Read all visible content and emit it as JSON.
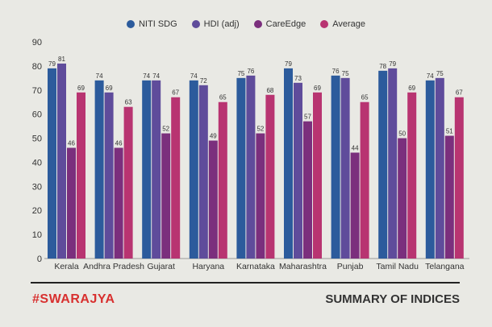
{
  "chart_data": {
    "type": "bar",
    "categories": [
      "Kerala",
      "Andhra Pradesh",
      "Gujarat",
      "Haryana",
      "Karnataka",
      "Maharashtra",
      "Punjab",
      "Tamil Nadu",
      "Telangana"
    ],
    "series": [
      {
        "name": "NITI SDG",
        "color": "#2c5b9c",
        "values": [
          79,
          74,
          74,
          74,
          75,
          79,
          76,
          78,
          74
        ]
      },
      {
        "name": "HDI (adj)",
        "color": "#5f4c9b",
        "values": [
          81,
          69,
          74,
          72,
          76,
          73,
          75,
          79,
          75
        ]
      },
      {
        "name": "CareEdge",
        "color": "#7b2f7d",
        "values": [
          46,
          46,
          52,
          49,
          52,
          57,
          44,
          50,
          51
        ]
      },
      {
        "name": "Average",
        "color": "#b83471",
        "values": [
          69,
          63,
          67,
          65,
          68,
          69,
          65,
          69,
          67
        ]
      }
    ],
    "yticks": [
      0,
      10,
      20,
      30,
      40,
      50,
      60,
      70,
      80,
      90
    ],
    "ylim": [
      0,
      90
    ],
    "grid": false,
    "legend": "top-center",
    "data_labels": true
  },
  "footer": {
    "brand": "#SWARAJYA",
    "title": "SUMMARY OF INDICES"
  }
}
